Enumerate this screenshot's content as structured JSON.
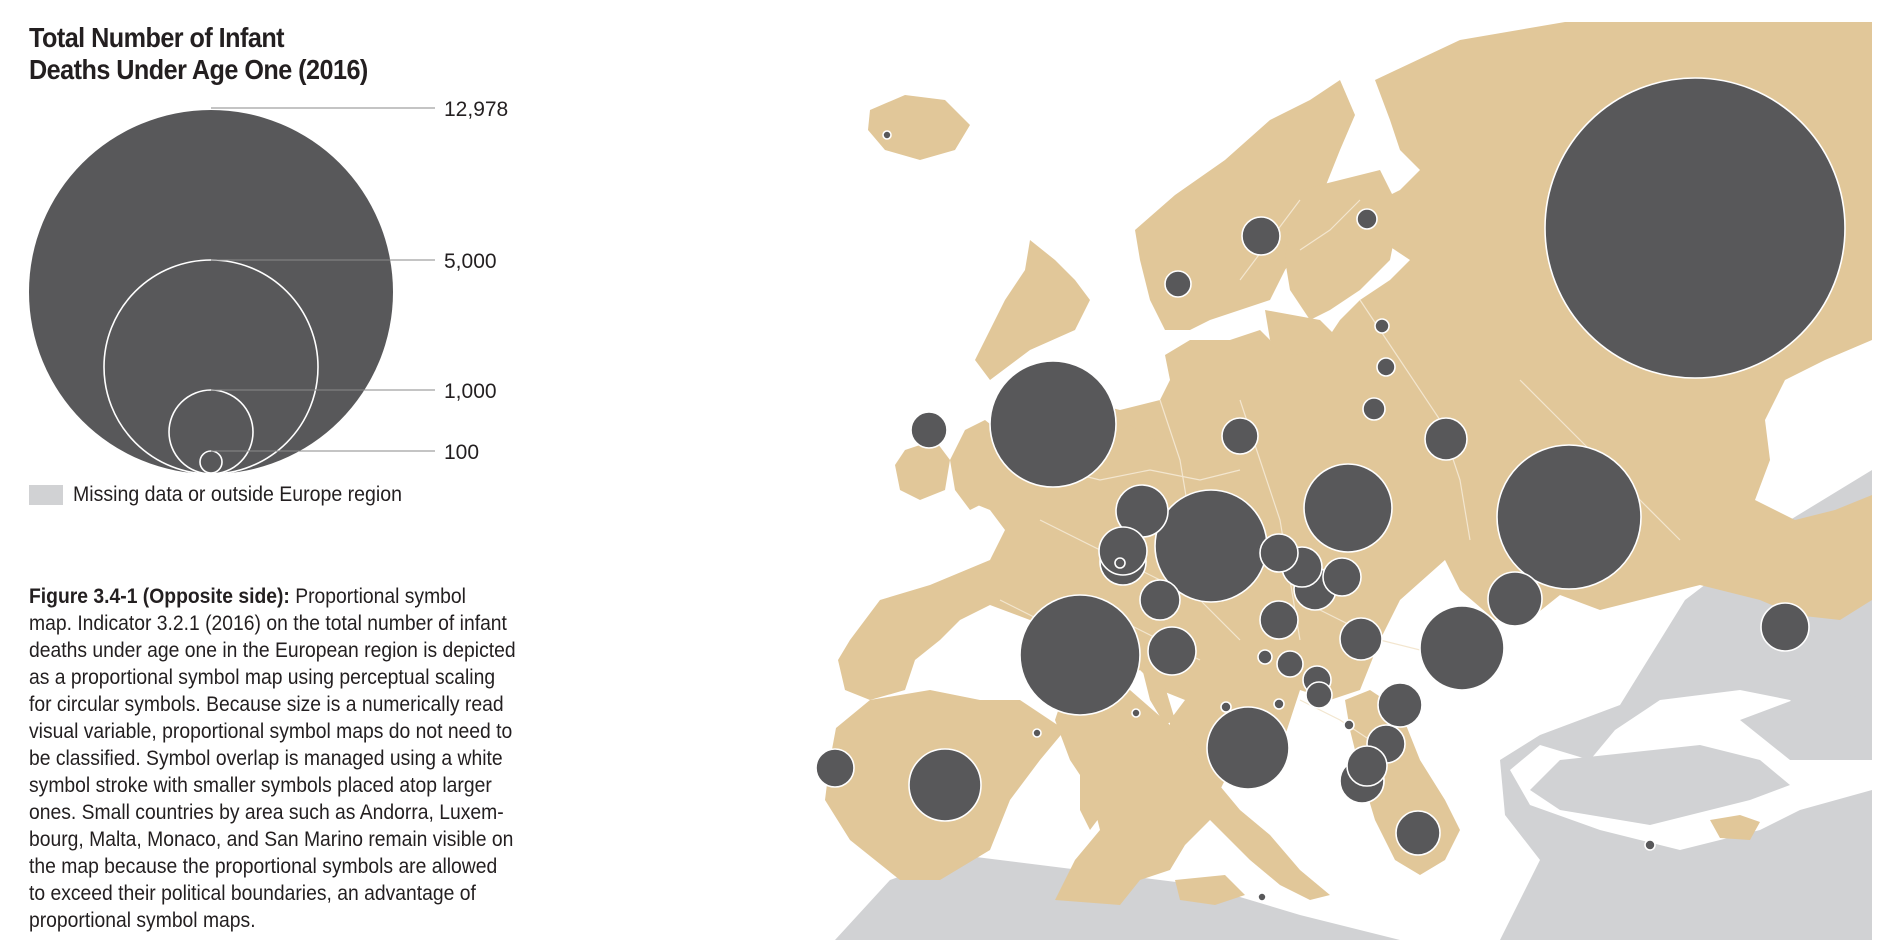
{
  "legend": {
    "title_line1": "Total Number of Infant",
    "title_line2": "Deaths Under Age One (2016)",
    "scale": [
      {
        "label": "12,978",
        "value": 12978
      },
      {
        "label": "5,000",
        "value": 5000
      },
      {
        "label": "1,000",
        "value": 1000
      },
      {
        "label": "100",
        "value": 100
      }
    ],
    "missing_label": "Missing data or outside Europe region"
  },
  "caption": {
    "lead": "Figure 3.4-1 (Opposite side):",
    "body": " Proportional symbol\nmap. Indicator 3.2.1 (2016) on the total number of infant\ndeaths under age one in the European region is depicted\nas a proportional symbol map using perceptual scaling\nfor circular symbols. Because size is a numerically read\nvisual variable, proportional symbol maps do not need to\nbe classified. Symbol overlap is managed using a white\nsymbol stroke with smaller symbols placed atop larger\nones. Small countries by area such as Andorra, Luxem-\nbourg, Malta, Monaco, and San Marino remain visible on\nthe map because the proportional symbols are allowed\nto exceed their political boundaries, an advantage of\nproportional symbol maps."
  },
  "map": {
    "colors": {
      "land": "#e1c799",
      "missing": "#d1d2d4",
      "symbol": "#58585a",
      "symbol_stroke": "#ffffff",
      "border": "#f3e6cf"
    }
  }
}
